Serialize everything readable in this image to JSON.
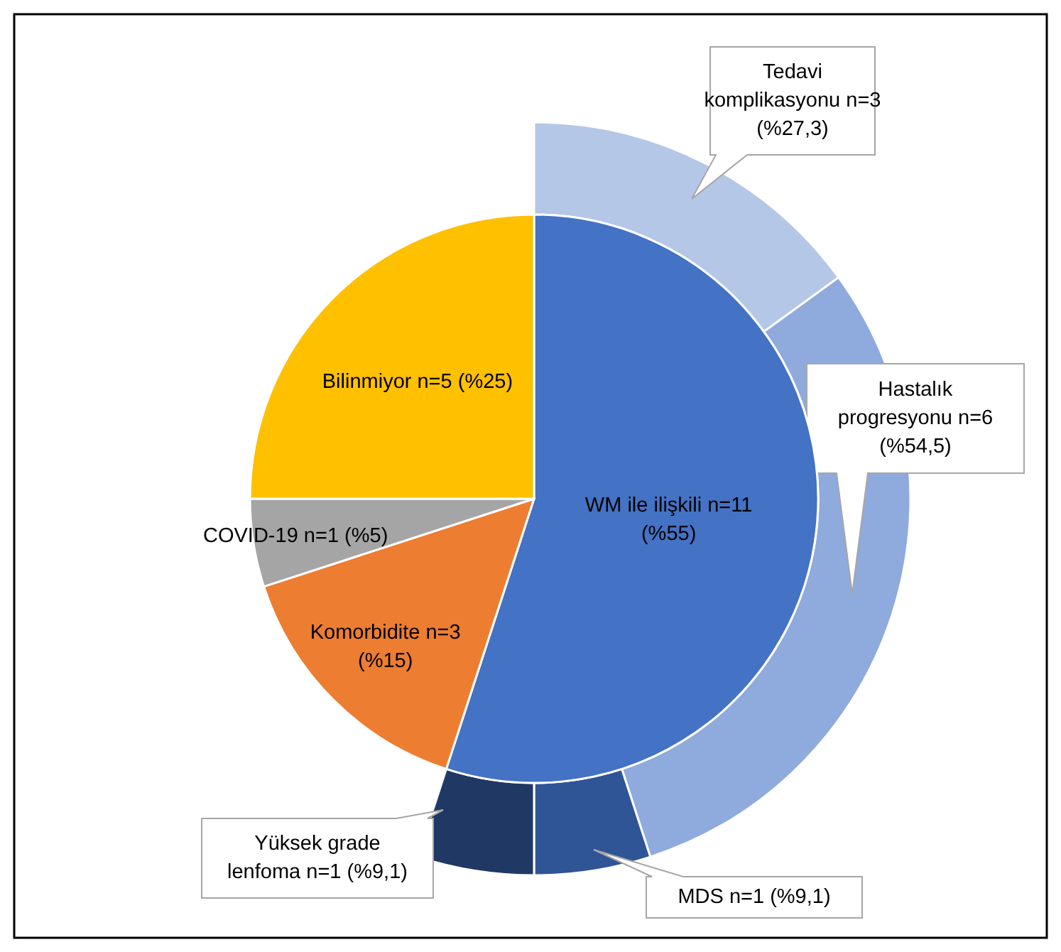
{
  "chart_data": [
    {
      "type": "pie",
      "categories": [
        "WM ile ilişkili n=11 (%55)",
        "Komorbidite n=3 (%15)",
        "COVID-19 n=1 (%5)",
        "Bilinmiyor n=5 (%25)"
      ],
      "values": [
        11,
        3,
        1,
        5
      ],
      "colors": [
        "#4472c4",
        "#ed7d31",
        "#a5a5a5",
        "#ffc000"
      ]
    },
    {
      "type": "donut",
      "categories": [
        "Tedavi komplikasyonu n=3 (%27,3)",
        "Hastalık progresyonu n=6 (%54,5)",
        "MDS n=1 (%9,1)",
        "Yüksek grade lenfoma n=1 (%9,1)"
      ],
      "values": [
        3,
        6,
        1,
        1
      ],
      "colors": [
        "#b4c7e7",
        "#8faadc",
        "#2f5597",
        "#203864"
      ]
    }
  ]
}
